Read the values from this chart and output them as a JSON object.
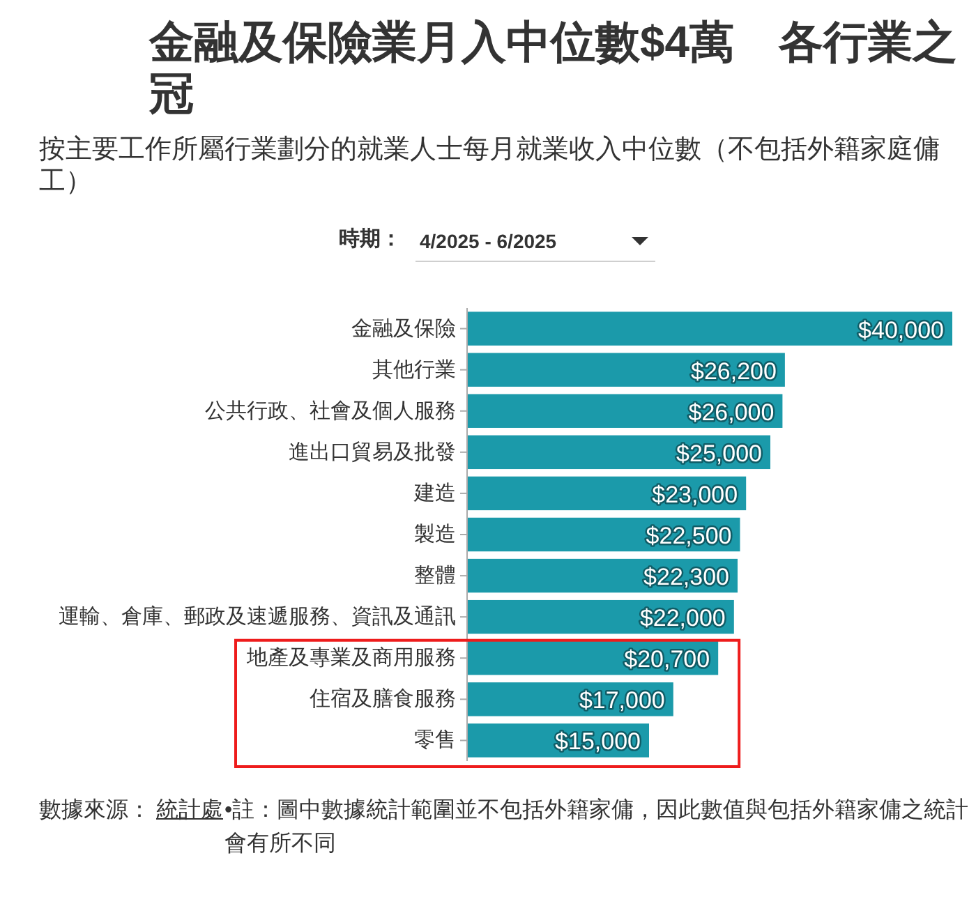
{
  "chart_data": {
    "type": "bar",
    "orientation": "horizontal",
    "title": "金融及保險業月入中位數$4萬　各行業之冠",
    "subtitle": "按主要工作所屬行業劃分的就業人士每月就業收入中位數（不包括外籍家庭傭工）",
    "categories": [
      "金融及保險",
      "其他行業",
      "公共行政、社會及個人服務",
      "進出口貿易及批發",
      "建造",
      "製造",
      "整體",
      "運輸、倉庫、郵政及速遞服務、資訊及通訊",
      "地產及專業及商用服務",
      "住宿及膳食服務",
      "零售"
    ],
    "values": [
      40000,
      26200,
      26000,
      25000,
      23000,
      22500,
      22300,
      22000,
      20700,
      17000,
      15000
    ],
    "value_labels": [
      "$40,000",
      "$26,200",
      "$26,000",
      "$25,000",
      "$23,000",
      "$22,500",
      "$22,300",
      "$22,000",
      "$20,700",
      "$17,000",
      "$15,000"
    ],
    "color": "#1b9aaa",
    "xlim": [
      0,
      40000
    ],
    "tick_labels": "y",
    "annotations": [
      "時期：",
      "4/2025 - 6/2025",
      "數據來源：",
      "統計處",
      "•註：圖中數據統計範圍並不包括外籍家傭，因此數值與包括外籍家傭之統計會有所不同"
    ]
  }
}
